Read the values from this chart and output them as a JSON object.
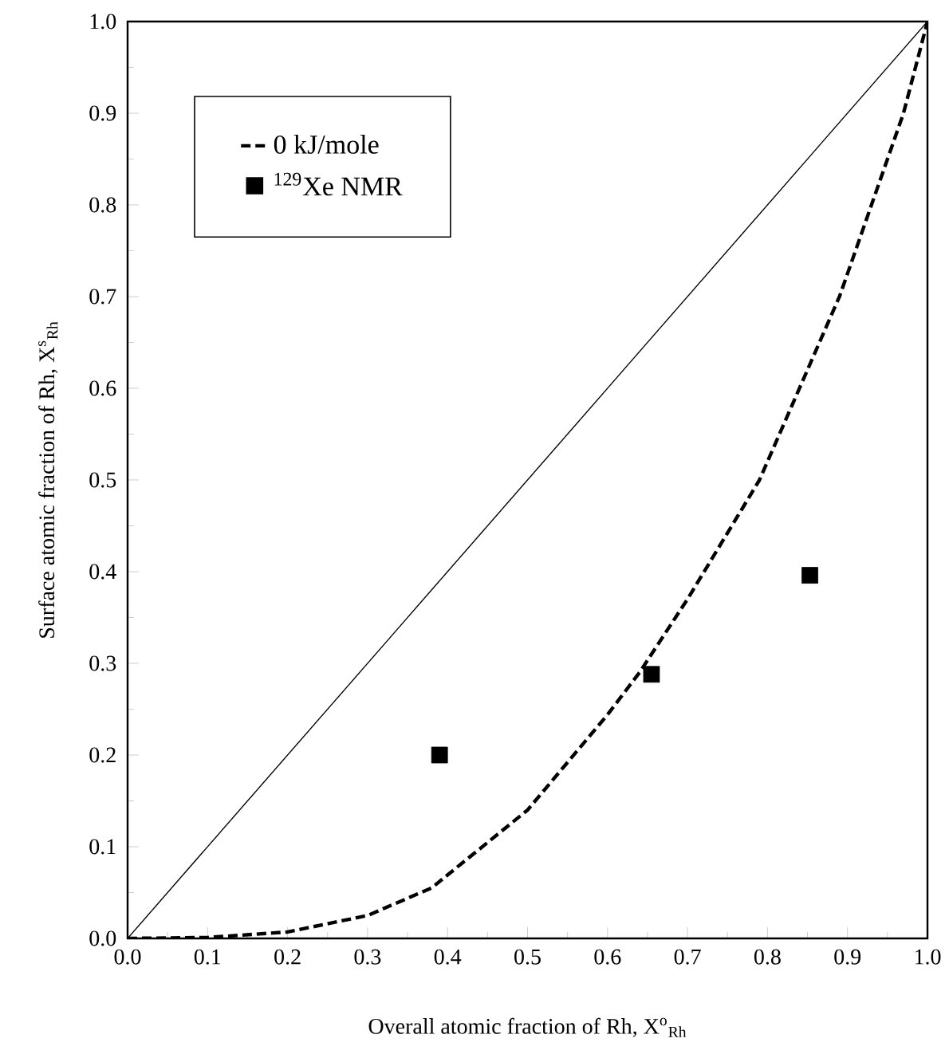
{
  "chart_data": {
    "type": "line",
    "xlabel": "Overall atomic fraction of Rh, X$^{o}$$_{Rh}$",
    "ylabel": "Surface atomic fraction of Rh, X$^{s}$$_{Rh}$",
    "xlim": [
      0,
      1
    ],
    "ylim": [
      0,
      1
    ],
    "xticks": [
      {
        "value": 0,
        "label": "0.0"
      },
      {
        "value": 0.1,
        "label": "0.1"
      },
      {
        "value": 0.2,
        "label": "0.2"
      },
      {
        "value": 0.3,
        "label": "0.3"
      },
      {
        "value": 0.4,
        "label": "0.4"
      },
      {
        "value": 0.5,
        "label": "0.5"
      },
      {
        "value": 0.6,
        "label": "0.6"
      },
      {
        "value": 0.7,
        "label": "0.7"
      },
      {
        "value": 0.8,
        "label": "0.8"
      },
      {
        "value": 0.9,
        "label": "0.9"
      },
      {
        "value": 1,
        "label": "1.0"
      }
    ],
    "yticks": [
      {
        "value": 0,
        "label": "0.0"
      },
      {
        "value": 0.1,
        "label": "0.1"
      },
      {
        "value": 0.2,
        "label": "0.2"
      },
      {
        "value": 0.3,
        "label": "0.3"
      },
      {
        "value": 0.4,
        "label": "0.4"
      },
      {
        "value": 0.5,
        "label": "0.5"
      },
      {
        "value": 0.6,
        "label": "0.6"
      },
      {
        "value": 0.7,
        "label": "0.7"
      },
      {
        "value": 0.8,
        "label": "0.8"
      },
      {
        "value": 0.9,
        "label": "0.9"
      },
      {
        "value": 1,
        "label": "1.0"
      }
    ],
    "legend": "top left",
    "series": [
      {
        "color": "#000000",
        "line_style": "solid",
        "marker": "none",
        "x": [
          0,
          1
        ],
        "values": [
          0,
          1
        ]
      },
      {
        "name": "0 kJ/mole",
        "color": "#000000",
        "line_style": "dashed",
        "marker": "none",
        "x": [
          0,
          0.1,
          0.2,
          0.3,
          0.38,
          0.5,
          0.6,
          0.64,
          0.7,
          0.79,
          0.84,
          0.89,
          0.93,
          0.97,
          1.0
        ],
        "values": [
          0,
          0.001,
          0.007,
          0.025,
          0.055,
          0.14,
          0.244,
          0.29,
          0.37,
          0.5,
          0.6,
          0.7,
          0.8,
          0.9,
          1.0
        ]
      },
      {
        "type": "scatter",
        "name": "$^{129}$Xe NMR",
        "color": "#000000",
        "marker": "square",
        "x": [
          0.39,
          0.655,
          0.853
        ],
        "values": [
          0.2,
          0.288,
          0.396
        ]
      }
    ]
  }
}
